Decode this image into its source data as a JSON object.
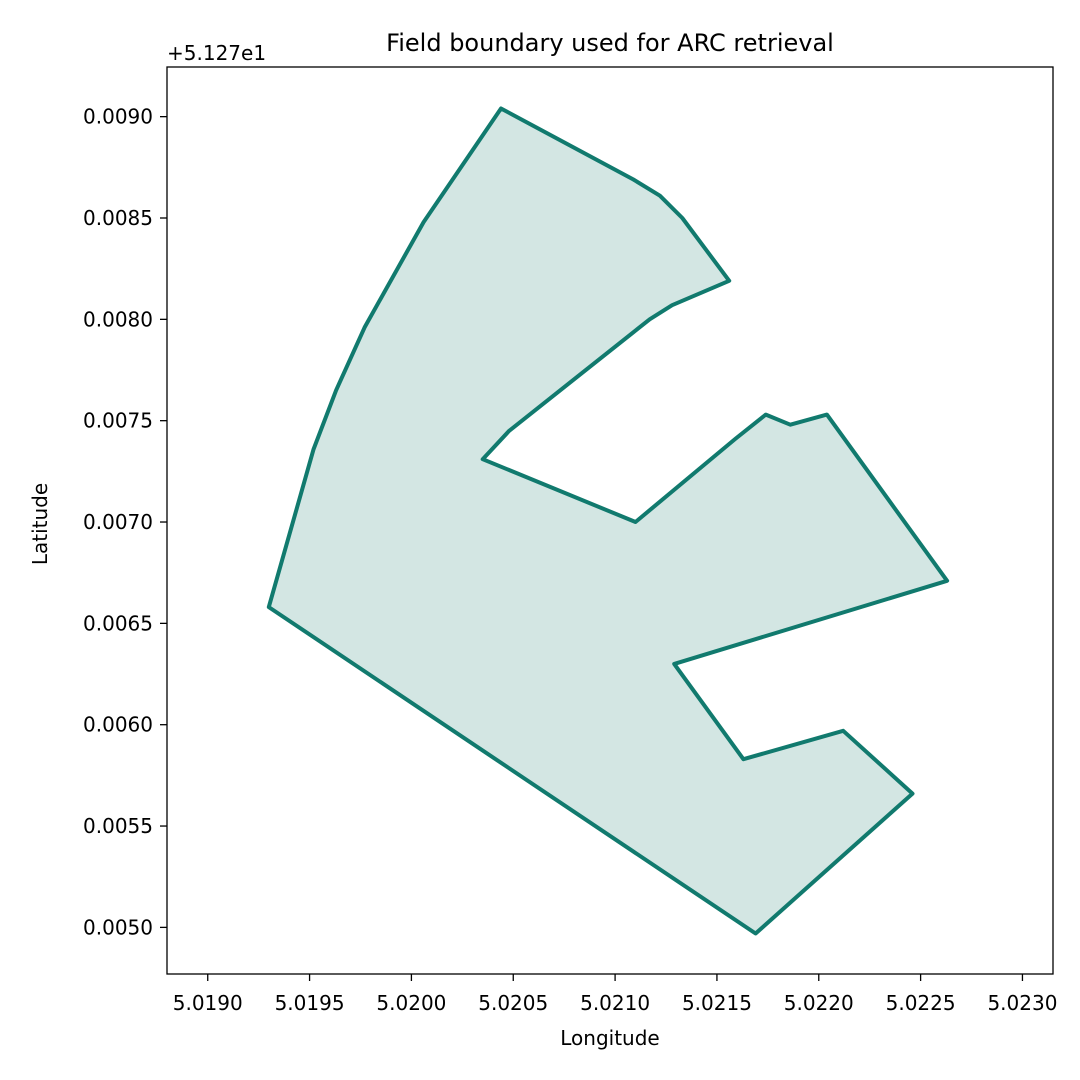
{
  "chart_data": {
    "type": "area",
    "title": "Field boundary used for ARC retrieval",
    "xlabel": "Longitude",
    "ylabel": "Latitude",
    "y_offset_label": "+5.127e1",
    "xlim": [
      5.0188,
      5.02315
    ],
    "ylim": [
      0.00477,
      0.009245
    ],
    "x_ticks": [
      5.019,
      5.0195,
      5.02,
      5.0205,
      5.021,
      5.0215,
      5.022,
      5.0225,
      5.023
    ],
    "x_tick_labels": [
      "5.0190",
      "5.0195",
      "5.0200",
      "5.0205",
      "5.0210",
      "5.0215",
      "5.0220",
      "5.0225",
      "5.0230"
    ],
    "y_ticks": [
      0.005,
      0.0055,
      0.006,
      0.0065,
      0.007,
      0.0075,
      0.008,
      0.0085,
      0.009
    ],
    "y_tick_labels": [
      "0.0050",
      "0.0055",
      "0.0060",
      "0.0065",
      "0.0070",
      "0.0075",
      "0.0080",
      "0.0085",
      "0.0090"
    ],
    "grid": false,
    "boundary": [
      [
        5.02044,
        0.00904
      ],
      [
        5.02109,
        0.00869
      ],
      [
        5.02122,
        0.00861
      ],
      [
        5.02133,
        0.0085
      ],
      [
        5.02156,
        0.00819
      ],
      [
        5.02128,
        0.00807
      ],
      [
        5.02117,
        0.008
      ],
      [
        5.02048,
        0.00745
      ],
      [
        5.02035,
        0.00731
      ],
      [
        5.0211,
        0.007
      ],
      [
        5.02159,
        0.00741
      ],
      [
        5.02174,
        0.00753
      ],
      [
        5.02186,
        0.00748
      ],
      [
        5.02204,
        0.00753
      ],
      [
        5.02263,
        0.00671
      ],
      [
        5.02129,
        0.0063
      ],
      [
        5.02163,
        0.00583
      ],
      [
        5.02212,
        0.00597
      ],
      [
        5.02246,
        0.00566
      ],
      [
        5.02169,
        0.00497
      ],
      [
        5.0193,
        0.00658
      ],
      [
        5.01952,
        0.00736
      ],
      [
        5.01963,
        0.00765
      ],
      [
        5.01977,
        0.00796
      ],
      [
        5.02006,
        0.00848
      ],
      [
        5.02044,
        0.00904
      ]
    ],
    "colors": {
      "edge": "#117a6e",
      "fill": "#d3e6e3"
    }
  }
}
